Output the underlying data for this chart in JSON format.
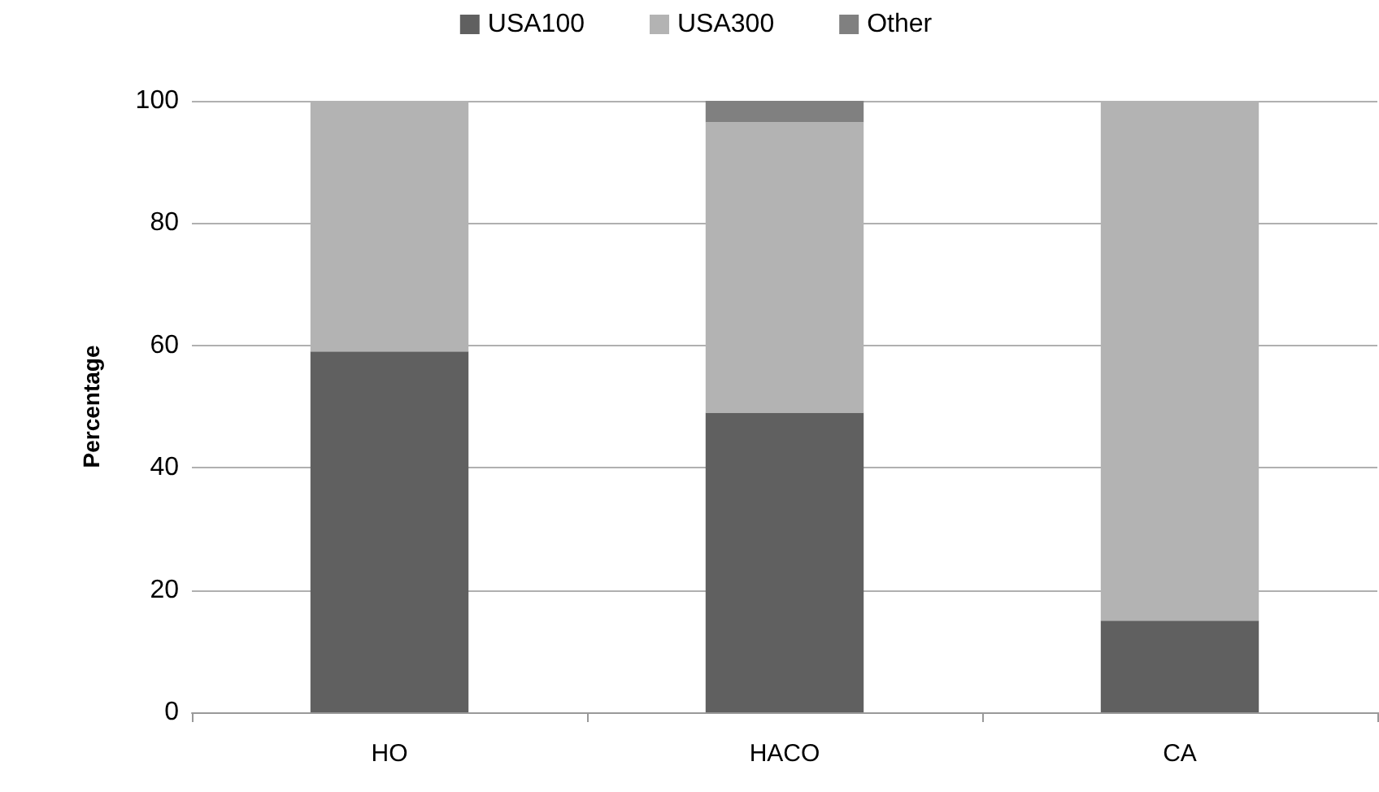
{
  "chart_data": {
    "type": "bar",
    "stacked": true,
    "ylabel": "Percentage",
    "categories": [
      "HO",
      "HACO",
      "CA"
    ],
    "series": [
      {
        "name": "USA100",
        "color": "#606060",
        "values": [
          59,
          49,
          15
        ]
      },
      {
        "name": "USA300",
        "color": "#b3b3b3",
        "values": [
          41,
          47.5,
          85
        ]
      },
      {
        "name": "Other",
        "color": "#808080",
        "values": [
          0,
          3.5,
          0
        ]
      }
    ],
    "ylim": [
      0,
      100
    ],
    "yticks": [
      0,
      20,
      40,
      60,
      80,
      100
    ],
    "grid": "y",
    "legend": "top"
  }
}
